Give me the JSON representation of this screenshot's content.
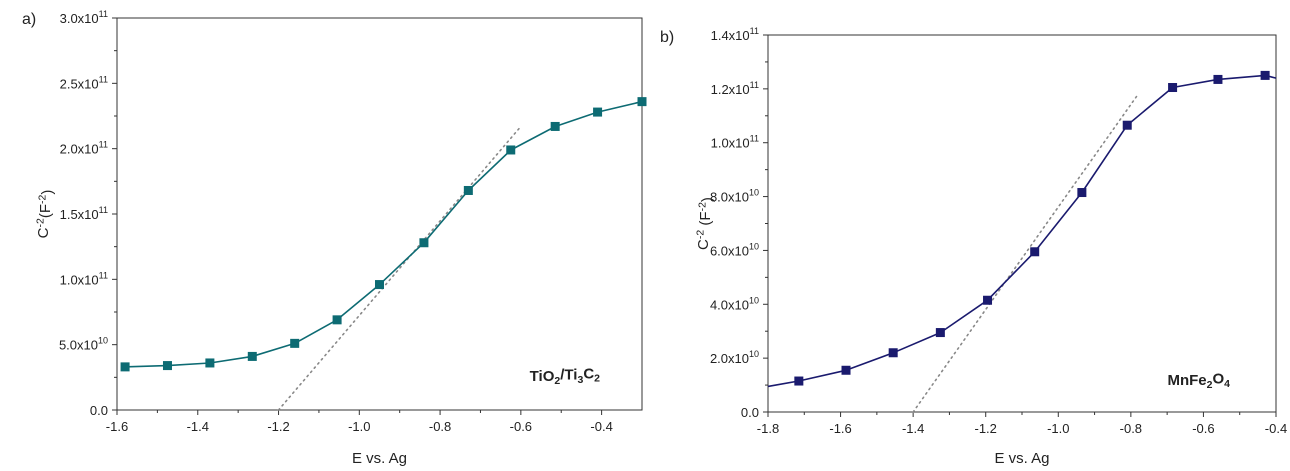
{
  "chart_data": [
    {
      "type": "line",
      "panel_label": "a)",
      "xlabel": "E vs. Ag",
      "ylabel": "C-2(F-2)",
      "annotation": "TiO2/Ti3C2",
      "xlim": [
        -1.6,
        -0.3
      ],
      "ylim": [
        0,
        300000000000.0
      ],
      "xticks": [
        -1.6,
        -1.4,
        -1.2,
        -1.0,
        -0.8,
        -0.6,
        -0.4
      ],
      "xtick_labels": [
        "-1.6",
        "-1.4",
        "-1.2",
        "-1.0",
        "-0.8",
        "-0.6",
        "-0.4"
      ],
      "yticks": [
        0,
        50000000000.0,
        100000000000.0,
        150000000000.0,
        200000000000.0,
        250000000000.0,
        300000000000.0
      ],
      "ytick_labels": [
        {
          "m": "0.0",
          "e": ""
        },
        {
          "m": "5.0x10",
          "e": "10"
        },
        {
          "m": "1.0x10",
          "e": "11"
        },
        {
          "m": "1.5x10",
          "e": "11"
        },
        {
          "m": "2.0x10",
          "e": "11"
        },
        {
          "m": "2.5x10",
          "e": "11"
        },
        {
          "m": "3.0x10",
          "e": "11"
        }
      ],
      "color": "#0d6b73",
      "series": [
        {
          "x": [
            -1.58,
            -1.475,
            -1.37,
            -1.265,
            -1.16,
            -1.055,
            -0.95,
            -0.84,
            -0.73,
            -0.625,
            -0.515,
            -0.41,
            -0.3
          ],
          "y": [
            33000000000.0,
            34000000000.0,
            36000000000.0,
            41000000000.0,
            51000000000.0,
            69000000000.0,
            96000000000.0,
            128000000000.0,
            168000000000.0,
            199000000000.0,
            217000000000.0,
            228000000000.0,
            236000000000.0
          ]
        }
      ],
      "fit_line": {
        "x": [
          -1.2,
          -0.6
        ],
        "y": [
          0,
          217000000000.0
        ]
      }
    },
    {
      "type": "line",
      "panel_label": "b)",
      "xlabel": "E vs. Ag",
      "ylabel": "C-2 (F-2)",
      "annotation": "MnFe2O4",
      "xlim": [
        -1.8,
        -0.4
      ],
      "ylim": [
        0,
        140000000000.0
      ],
      "xticks": [
        -1.8,
        -1.6,
        -1.4,
        -1.2,
        -1.0,
        -0.8,
        -0.6,
        -0.4
      ],
      "xtick_labels": [
        "-1.8",
        "-1.6",
        "-1.4",
        "-1.2",
        "-1.0",
        "-0.8",
        "-0.6",
        "-0.4"
      ],
      "yticks": [
        0,
        20000000000.0,
        40000000000.0,
        60000000000.0,
        80000000000.0,
        100000000000.0,
        120000000000.0,
        140000000000.0
      ],
      "ytick_labels": [
        {
          "m": "0.0",
          "e": ""
        },
        {
          "m": "2.0x10",
          "e": "10"
        },
        {
          "m": "4.0x10",
          "e": "10"
        },
        {
          "m": "6.0x10",
          "e": "10"
        },
        {
          "m": "8.0x10",
          "e": "10"
        },
        {
          "m": "1.0x10",
          "e": "11"
        },
        {
          "m": "1.2x10",
          "e": "11"
        },
        {
          "m": "1.4x10",
          "e": "11"
        }
      ],
      "color": "#1a1a6e",
      "curve_start": {
        "x": -1.8,
        "y": 9500000000.0
      },
      "curve_end": {
        "x": -0.4,
        "y": 124000000000.0
      },
      "series": [
        {
          "x": [
            -1.715,
            -1.585,
            -1.455,
            -1.325,
            -1.195,
            -1.065,
            -0.935,
            -0.81,
            -0.685,
            -0.56,
            -0.43
          ],
          "y": [
            11500000000.0,
            15500000000.0,
            22000000000.0,
            29500000000.0,
            41500000000.0,
            59500000000.0,
            81500000000.0,
            106500000000.0,
            120500000000.0,
            123500000000.0,
            125000000000.0
          ]
        }
      ],
      "fit_line": {
        "x": [
          -1.4,
          -0.78
        ],
        "y": [
          0,
          118000000000.0
        ]
      }
    }
  ]
}
